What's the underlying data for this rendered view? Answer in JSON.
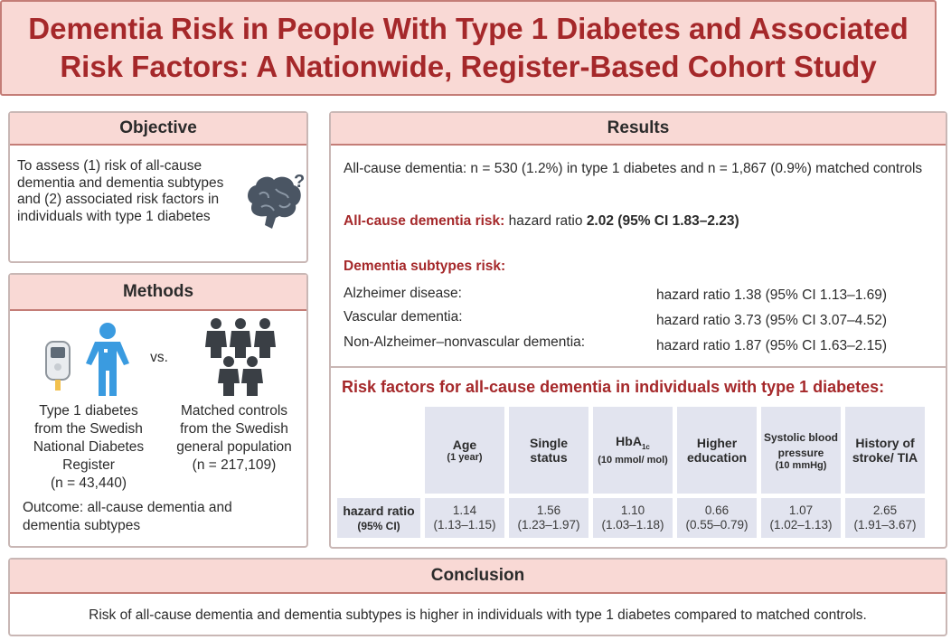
{
  "title": {
    "line1": "Dementia Risk in People With Type 1 Diabetes and Associated",
    "line2": "Risk Factors: A Nationwide, Register-Based Cohort Study"
  },
  "objective": {
    "heading": "Objective",
    "text": "To assess (1) risk of all-cause dementia and dementia subtypes and (2) associated risk factors in individuals with type 1 diabetes",
    "icon": "brain-question-icon"
  },
  "methods": {
    "heading": "Methods",
    "vs": "vs.",
    "group1_line1": "Type 1 diabetes",
    "group1_line2": "from the Swedish",
    "group1_line3": "National Diabetes",
    "group1_line4": "Register",
    "group1_n": "(n = 43,440)",
    "group2_line1": "Matched controls",
    "group2_line2": "from the Swedish",
    "group2_line3": "general population",
    "group2_n": "(n = 217,109)",
    "outcome": "Outcome: all-cause dementia and dementia subtypes"
  },
  "results": {
    "heading": "Results",
    "summary": "All-cause dementia: n = 530 (1.2%) in type 1 diabetes and n = 1,867 (0.9%) matched controls",
    "allcause_label": "All-cause dementia risk:",
    "allcause_pre": "hazard ratio",
    "allcause_value": "2.02 (95% CI 1.83–2.23)",
    "subtypes_label": "Dementia subtypes risk:",
    "subtypes": [
      {
        "name": "Alzheimer disease:",
        "hr": "hazard ratio 1.38 (95% CI 1.13–1.69)"
      },
      {
        "name": "Vascular dementia:",
        "hr": "hazard ratio 3.73 (95% CI 3.07–4.52)"
      },
      {
        "name": "Non-Alzheimer–nonvascular dementia:",
        "hr": "hazard ratio 1.87 (95% CI 1.63–2.15)"
      }
    ],
    "rf_title": "Risk factors for all-cause dementia in individuals with type 1 diabetes:",
    "rf_row_label_1": "hazard ratio",
    "rf_row_label_2": "(95% CI)",
    "rf_columns": [
      {
        "name": "Age",
        "unit": "(1 year)",
        "hr": "1.14",
        "ci": "(1.13–1.15)"
      },
      {
        "name": "Single status",
        "unit": "",
        "hr": "1.56",
        "ci": "(1.23–1.97)"
      },
      {
        "name": "HbA",
        "sub": "1c",
        "unit": "(10 mmol/ mol)",
        "hr": "1.10",
        "ci": "(1.03–1.18)"
      },
      {
        "name": "Higher education",
        "unit": "",
        "hr": "0.66",
        "ci": "(0.55–0.79)"
      },
      {
        "name": "Systolic blood pressure",
        "unit": "(10 mmHg)",
        "hr": "1.07",
        "ci": "(1.02–1.13)"
      },
      {
        "name": "History of stroke/ TIA",
        "unit": "",
        "hr": "2.65",
        "ci": "(1.91–3.67)"
      }
    ]
  },
  "conclusion": {
    "heading": "Conclusion",
    "text": "Risk of all-cause dementia and dementia subtypes is higher in individuals with type 1 diabetes compared to matched controls."
  },
  "colors": {
    "accent": "#a5282a",
    "header_fill": "#f9d9d5",
    "table_fill": "#e2e4ef",
    "person_blue": "#3a9be0",
    "crowd_dark": "#3a3f45"
  }
}
